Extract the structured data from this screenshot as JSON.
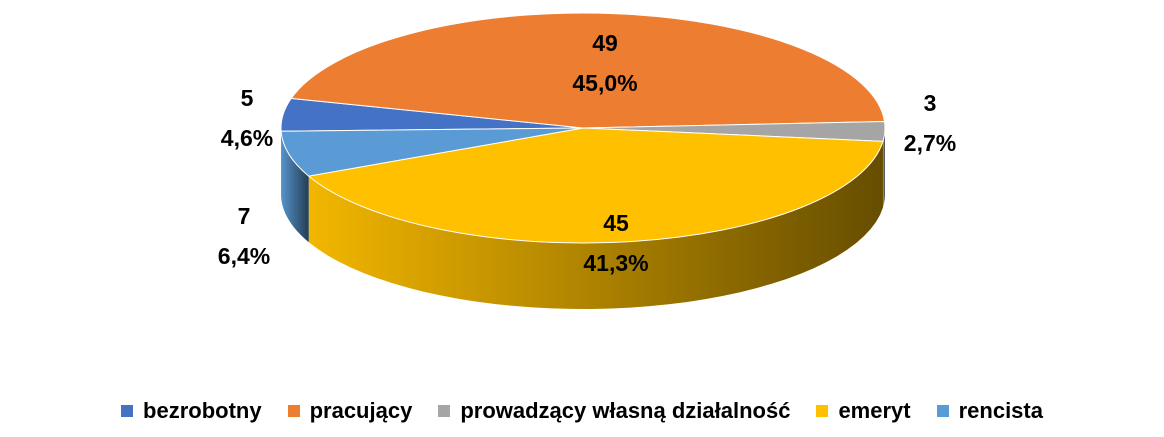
{
  "chart_data": {
    "type": "pie3d",
    "categories": [
      "bezrobotny",
      "pracujący",
      "prowadzący własną działalność",
      "emeryt",
      "rencista"
    ],
    "values": [
      5,
      49,
      3,
      45,
      7
    ],
    "percentage_labels": [
      "4,6%",
      "45,0%",
      "2,7%",
      "41,3%",
      "6,4%"
    ],
    "colors": [
      "#4472c4",
      "#ed7d31",
      "#a5a5a5",
      "#ffc000",
      "#5b9bd5"
    ],
    "legend": "bottom"
  }
}
